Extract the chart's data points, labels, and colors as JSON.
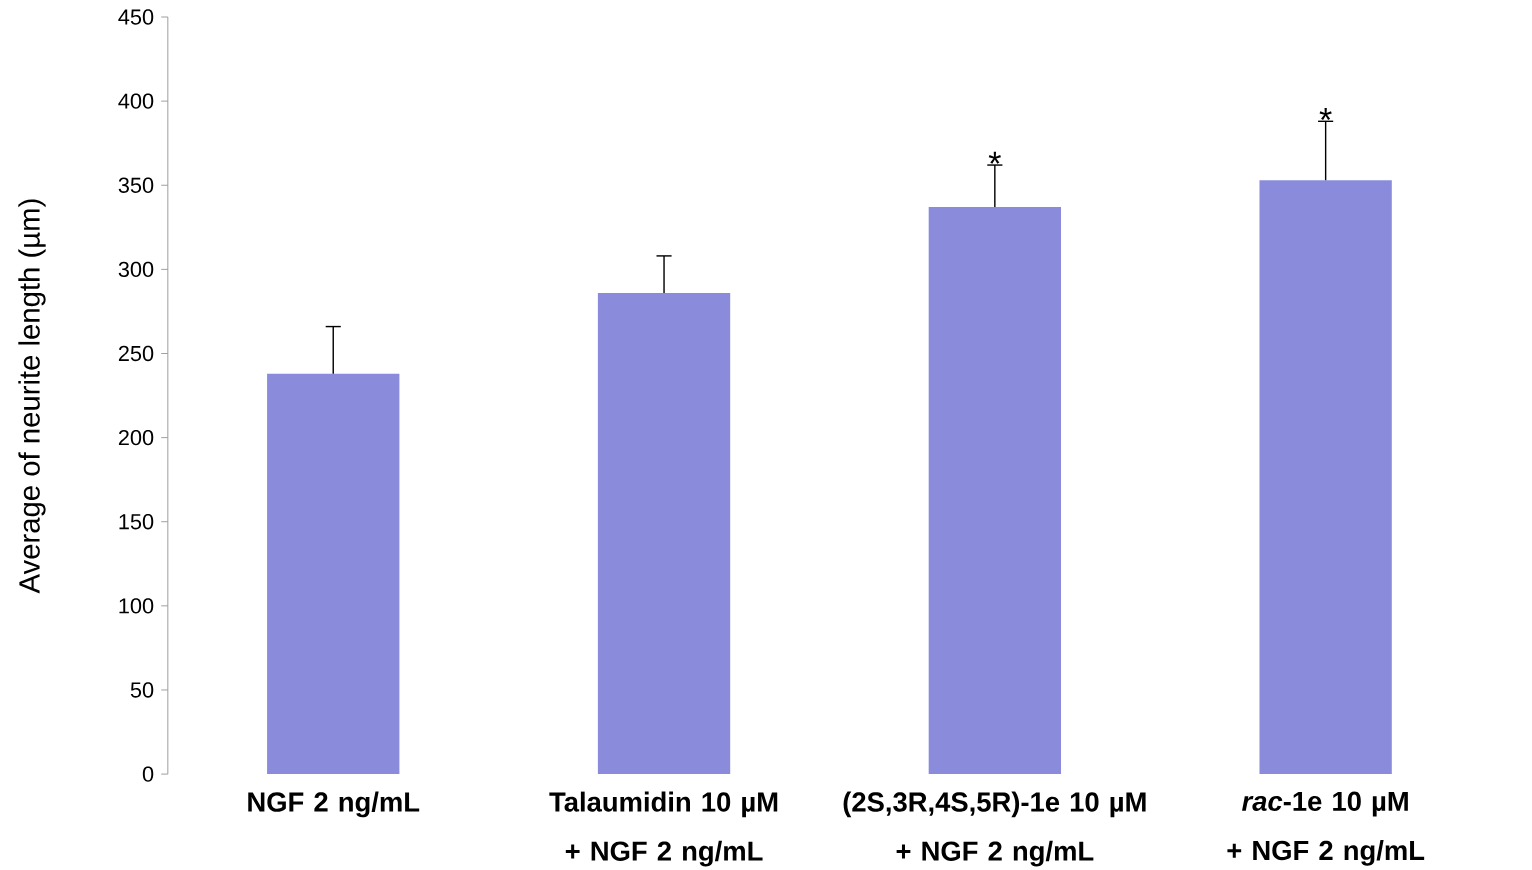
{
  "chart_data": {
    "type": "bar",
    "ylabel": "Average of neurite length (µm)",
    "categories": [
      "NGF 2 ng/mL",
      "Talaumidin 10 µM + NGF 2 ng/mL",
      "(2S,3R,4S,5R)-1e 10 µM + NGF 2 ng/mL",
      "*rac*-1e 10 µM + NGF 2 ng/mL"
    ],
    "values": [
      238,
      286,
      337,
      353
    ],
    "errors": [
      [
        238,
        266
      ],
      [
        286,
        308
      ],
      [
        337,
        362
      ],
      [
        353,
        388
      ]
    ],
    "color": "#8a8cdb",
    "ylim": [
      0,
      450
    ],
    "yticks": [
      0,
      50,
      100,
      150,
      200,
      250,
      300,
      350,
      400,
      450
    ],
    "annotations": [
      {
        "text": "*",
        "x": "(2S,3R,4S,5R)-1e 10 µM + NGF 2 ng/mL",
        "y": 362
      },
      {
        "text": "*",
        "x": "*rac*-1e 10 µM + NGF 2 ng/mL",
        "y": 388
      }
    ]
  }
}
